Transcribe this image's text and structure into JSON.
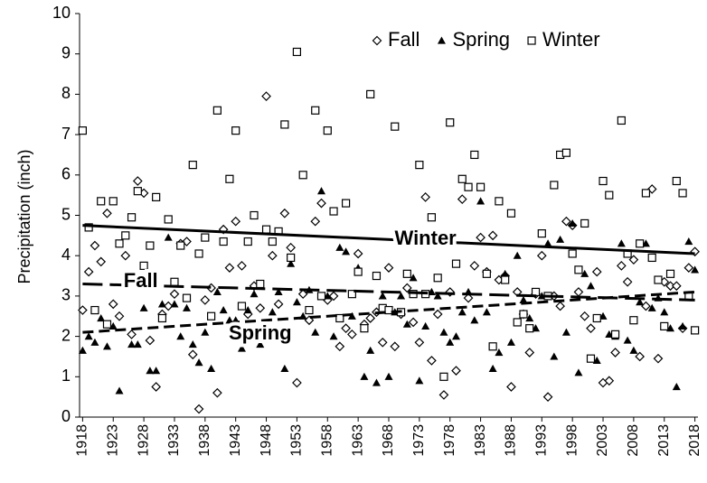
{
  "chart_data": {
    "type": "scatter",
    "y_label": "Precipitation (inch)",
    "x": [
      1918,
      1919,
      1920,
      1921,
      1922,
      1923,
      1924,
      1925,
      1926,
      1927,
      1928,
      1929,
      1930,
      1931,
      1932,
      1933,
      1934,
      1935,
      1936,
      1937,
      1938,
      1939,
      1940,
      1941,
      1942,
      1943,
      1944,
      1945,
      1946,
      1947,
      1948,
      1949,
      1950,
      1951,
      1952,
      1953,
      1954,
      1955,
      1956,
      1957,
      1958,
      1959,
      1960,
      1961,
      1962,
      1963,
      1964,
      1965,
      1966,
      1967,
      1968,
      1969,
      1970,
      1971,
      1972,
      1973,
      1974,
      1975,
      1976,
      1977,
      1978,
      1979,
      1980,
      1981,
      1982,
      1983,
      1984,
      1985,
      1986,
      1987,
      1988,
      1989,
      1990,
      1991,
      1992,
      1993,
      1994,
      1995,
      1996,
      1997,
      1998,
      1999,
      2000,
      2001,
      2002,
      2003,
      2004,
      2005,
      2006,
      2007,
      2008,
      2009,
      2010,
      2011,
      2012,
      2013,
      2014,
      2015,
      2016,
      2017,
      2018
    ],
    "series": [
      {
        "name": "Fall",
        "marker": "diamond",
        "color": "#000000",
        "trend_style": "long-dash",
        "trend": [
          3.3,
          2.9
        ],
        "values": [
          2.65,
          3.6,
          4.25,
          3.85,
          5.05,
          2.8,
          2.5,
          4.0,
          2.05,
          5.85,
          5.55,
          1.9,
          0.75,
          2.55,
          2.75,
          3.05,
          4.3,
          4.35,
          1.55,
          0.2,
          2.9,
          3.2,
          0.6,
          4.65,
          3.7,
          4.85,
          3.75,
          2.55,
          3.25,
          2.7,
          7.95,
          4.0,
          2.8,
          5.05,
          4.2,
          0.85,
          3.05,
          2.4,
          4.85,
          5.3,
          2.9,
          3.0,
          1.75,
          2.2,
          2.05,
          4.05,
          2.3,
          2.45,
          2.6,
          1.85,
          3.7,
          1.75,
          2.55,
          3.2,
          2.35,
          1.85,
          5.45,
          1.4,
          2.55,
          0.55,
          3.1,
          1.15,
          5.4,
          2.95,
          3.75,
          4.45,
          3.6,
          4.5,
          3.4,
          3.5,
          0.75,
          3.1,
          2.55,
          1.6,
          3.05,
          4.0,
          0.5,
          3.0,
          2.75,
          4.85,
          4.75,
          3.1,
          2.5,
          2.2,
          3.6,
          0.85,
          0.9,
          1.6,
          3.75,
          3.35,
          3.9,
          1.5,
          2.75,
          5.65,
          1.45,
          3.35,
          3.25,
          3.25,
          2.2,
          3.7,
          4.1
        ]
      },
      {
        "name": "Spring",
        "marker": "triangle",
        "color": "#000000",
        "trend_style": "dash",
        "trend": [
          2.1,
          3.1
        ],
        "values": [
          1.65,
          2.0,
          1.85,
          2.45,
          1.75,
          2.25,
          0.65,
          3.3,
          1.8,
          1.8,
          2.7,
          1.15,
          1.15,
          2.8,
          4.45,
          2.8,
          2.0,
          2.7,
          1.8,
          1.35,
          2.1,
          1.2,
          3.1,
          2.65,
          2.4,
          2.4,
          1.7,
          2.65,
          3.05,
          1.8,
          2.2,
          2.6,
          3.1,
          1.2,
          3.8,
          2.85,
          2.5,
          3.15,
          2.1,
          5.6,
          3.0,
          2.0,
          4.2,
          4.1,
          2.5,
          3.7,
          1.0,
          1.65,
          0.85,
          3.0,
          1.0,
          2.6,
          3.0,
          2.3,
          3.45,
          0.9,
          2.25,
          3.1,
          3.0,
          2.1,
          1.85,
          2.0,
          2.6,
          3.1,
          2.4,
          5.35,
          2.6,
          1.2,
          1.6,
          3.55,
          1.85,
          4.0,
          2.9,
          2.45,
          2.2,
          3.0,
          4.3,
          1.5,
          4.4,
          2.1,
          4.8,
          1.1,
          3.55,
          3.25,
          1.4,
          2.5,
          2.05,
          2.0,
          4.3,
          1.9,
          1.65,
          2.85,
          4.3,
          2.7,
          2.95,
          2.6,
          2.2,
          0.75,
          2.25,
          4.35,
          3.65
        ]
      },
      {
        "name": "Winter",
        "marker": "square",
        "color": "#000000",
        "trend_style": "solid",
        "trend": [
          4.75,
          4.05
        ],
        "values": [
          7.1,
          4.7,
          2.65,
          5.35,
          2.3,
          5.35,
          4.3,
          4.5,
          4.95,
          5.6,
          3.75,
          4.25,
          5.45,
          2.45,
          4.9,
          3.35,
          4.25,
          2.95,
          6.25,
          4.05,
          4.45,
          2.5,
          7.6,
          4.35,
          5.9,
          7.1,
          2.75,
          4.35,
          5.0,
          3.3,
          4.65,
          4.35,
          4.6,
          7.25,
          3.95,
          9.05,
          6.0,
          2.65,
          7.6,
          3.0,
          7.1,
          5.1,
          2.45,
          5.3,
          3.05,
          3.6,
          2.2,
          8.0,
          3.5,
          2.7,
          2.65,
          7.2,
          2.6,
          3.55,
          3.05,
          6.25,
          3.05,
          4.95,
          3.45,
          1.0,
          7.3,
          3.8,
          5.9,
          5.7,
          6.5,
          5.7,
          3.55,
          1.75,
          5.35,
          3.4,
          5.05,
          2.35,
          2.55,
          2.2,
          3.1,
          4.55,
          3.0,
          5.75,
          6.5,
          6.55,
          4.05,
          3.65,
          4.8,
          1.45,
          2.45,
          5.85,
          5.5,
          2.05,
          7.35,
          4.05,
          2.4,
          4.3,
          5.55,
          3.95,
          3.4,
          2.25,
          3.55,
          5.85,
          5.55,
          3.0,
          2.15
        ]
      }
    ],
    "xlim": [
      1917.5,
      2018.5
    ],
    "xticks": [
      1918,
      1923,
      1928,
      1933,
      1938,
      1943,
      1948,
      1953,
      1958,
      1963,
      1968,
      1973,
      1978,
      1983,
      1988,
      1993,
      1998,
      2003,
      2008,
      2013,
      2018
    ],
    "ylim": [
      0,
      10
    ],
    "yticks": [
      0,
      1,
      2,
      3,
      4,
      5,
      6,
      7,
      8,
      9,
      10
    ],
    "grid": false,
    "legend": "top-right"
  }
}
